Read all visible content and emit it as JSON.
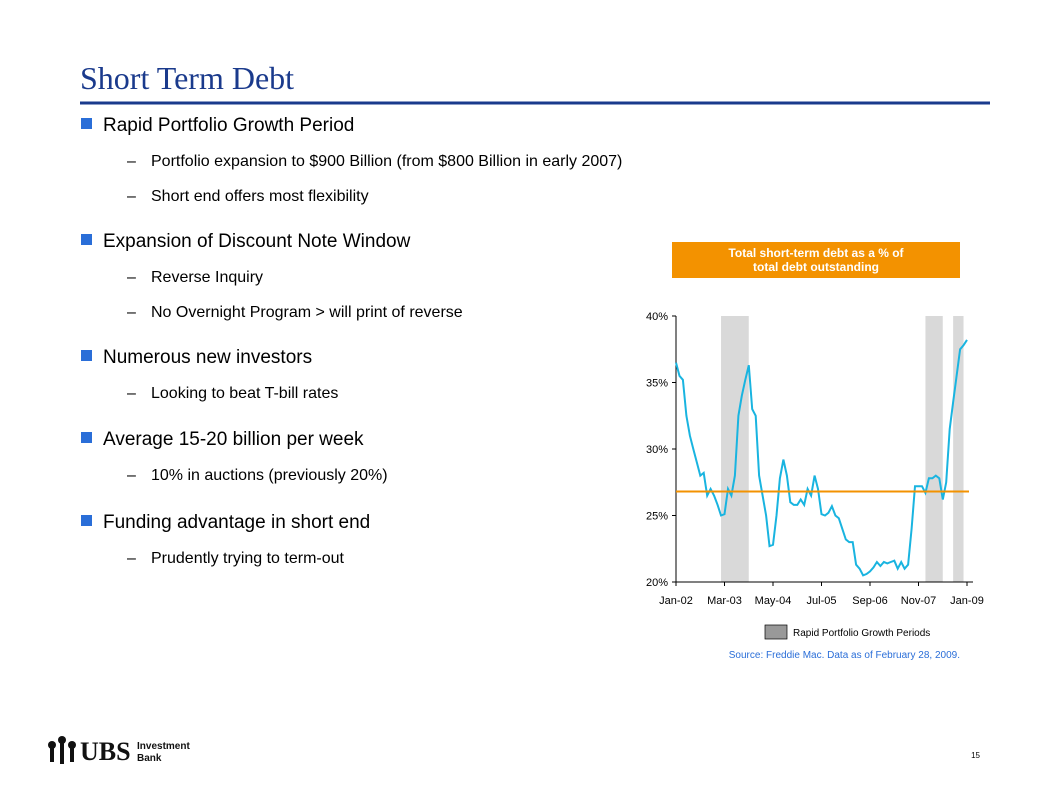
{
  "slide": {
    "title": "Short Term Debt",
    "bullets": [
      {
        "text": "Rapid Portfolio Growth Period",
        "subs": [
          "Portfolio expansion to $900 Billion (from $800 Billion in early 2007)",
          "Short end offers most flexibility"
        ]
      },
      {
        "text": "Expansion of Discount Note Window",
        "subs": [
          "Reverse Inquiry",
          "No Overnight Program > will print of reverse"
        ]
      },
      {
        "text": "Numerous new investors",
        "subs": [
          "Looking to beat T-bill rates"
        ]
      },
      {
        "text": "Average 15-20 billion per week",
        "subs": [
          "10% in auctions (previously 20%)"
        ]
      },
      {
        "text": "Funding advantage in short end",
        "subs": [
          "Prudently trying to term-out"
        ]
      }
    ],
    "logo": {
      "name": "UBS",
      "line1": "Investment",
      "line2": "Bank"
    },
    "page_number": "15"
  },
  "chart_data": {
    "type": "line",
    "title_lines": [
      "Total short-term debt as a % of",
      "total debt outstanding"
    ],
    "categories": [
      "Jan-02",
      null,
      null,
      null,
      null,
      null,
      null,
      null,
      null,
      null,
      null,
      null,
      null,
      null,
      "Mar-03",
      null,
      null,
      null,
      null,
      null,
      null,
      null,
      null,
      null,
      null,
      null,
      null,
      null,
      "May-04",
      null,
      null,
      null,
      null,
      null,
      null,
      null,
      null,
      null,
      null,
      null,
      null,
      null,
      "Jul-05",
      null,
      null,
      null,
      null,
      null,
      null,
      null,
      null,
      null,
      null,
      null,
      null,
      null,
      "Sep-06",
      null,
      null,
      null,
      null,
      null,
      null,
      null,
      null,
      null,
      null,
      null,
      null,
      null,
      "Nov-07",
      null,
      null,
      null,
      null,
      null,
      null,
      null,
      null,
      null,
      null,
      null,
      null,
      null,
      "Jan-09"
    ],
    "series": [
      {
        "name": "Total short-term debt",
        "color": "#19b4e0",
        "values": [
          36.5,
          35.5,
          35.2,
          32.5,
          31,
          30,
          29,
          28,
          28.2,
          26.5,
          27,
          26.5,
          25.8,
          25,
          25.1,
          27,
          26.5,
          28,
          32.5,
          34,
          35.2,
          36.3,
          33,
          32.5,
          28,
          26.5,
          25,
          22.7,
          22.8,
          25,
          27.8,
          29.2,
          28,
          26,
          25.8,
          25.8,
          26.2,
          25.8,
          27,
          26.5,
          28,
          27,
          25.1,
          25,
          25.2,
          25.7,
          25,
          24.8,
          24,
          23.2,
          23,
          23,
          21.3,
          21,
          20.5,
          20.6,
          20.8,
          21.1,
          21.5,
          21.2,
          21.5,
          21.4,
          21.5,
          21.6,
          21,
          21.5,
          21,
          21.3,
          24,
          27.2,
          27.2,
          27.2,
          26.7,
          27.8,
          27.8,
          28,
          27.8,
          26.2,
          27.5,
          31.5,
          33.5,
          35.5,
          37.5,
          37.8,
          38.2
        ]
      }
    ],
    "reference_line": {
      "value": 26.8,
      "color": "#f39200"
    },
    "shaded_periods": {
      "name": "Rapid Portfolio Growth Periods",
      "color": "#d9d9d9",
      "legend_color": "#999999",
      "ranges": [
        [
          13,
          21
        ],
        [
          72,
          77
        ],
        [
          80,
          83
        ]
      ]
    },
    "ylim": [
      20,
      40
    ],
    "yticks": [
      {
        "value": 20,
        "label": "20%"
      },
      {
        "value": 25,
        "label": "25%"
      },
      {
        "value": 30,
        "label": "30%"
      },
      {
        "value": 35,
        "label": "35%"
      },
      {
        "value": 40,
        "label": "40%"
      }
    ],
    "source": "Source: Freddie Mac.  Data as of February 28, 2009."
  }
}
